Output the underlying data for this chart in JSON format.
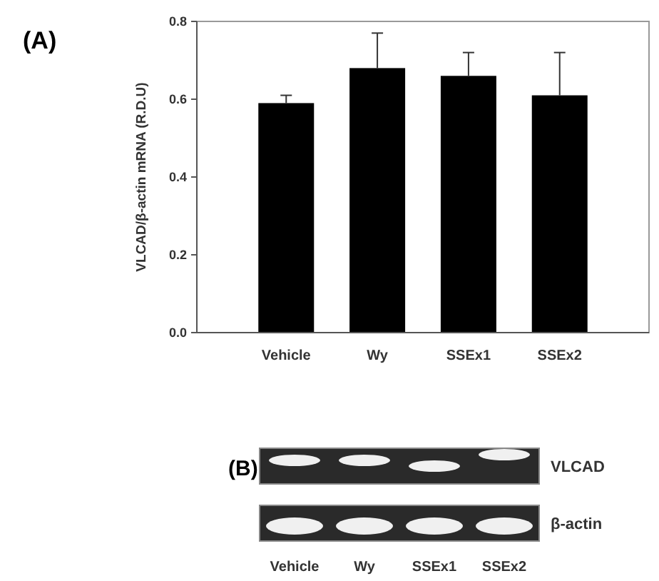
{
  "chart_data": [
    {
      "type": "bar",
      "title": "(A)",
      "ylabel": "VLCAD/β-actin mRNA (R.D.U)",
      "categories": [
        "Vehicle",
        "Wy",
        "SSEx1",
        "SSEx2"
      ],
      "values": [
        0.59,
        0.68,
        0.66,
        0.61
      ],
      "errors": [
        [
          0.59,
          0.61
        ],
        [
          0.68,
          0.77
        ],
        [
          0.66,
          0.72
        ],
        [
          0.61,
          0.72
        ]
      ],
      "color": "#000000",
      "ylim": [
        0,
        0.8
      ],
      "yticks": [
        {
          "value": 0,
          "label": "0.0"
        },
        {
          "value": 0.2,
          "label": "0.2"
        },
        {
          "value": 0.4,
          "label": "0.4"
        },
        {
          "value": 0.6,
          "label": "0.6"
        },
        {
          "value": 0.8,
          "label": "0.8"
        }
      ],
      "grid": false
    },
    {
      "type": "other",
      "title": "(B)",
      "categories": [
        "Vehicle",
        "Wy",
        "SSEx1",
        "SSEx2"
      ],
      "y_categories": [
        "VLCAD",
        "β-actin"
      ]
    }
  ]
}
